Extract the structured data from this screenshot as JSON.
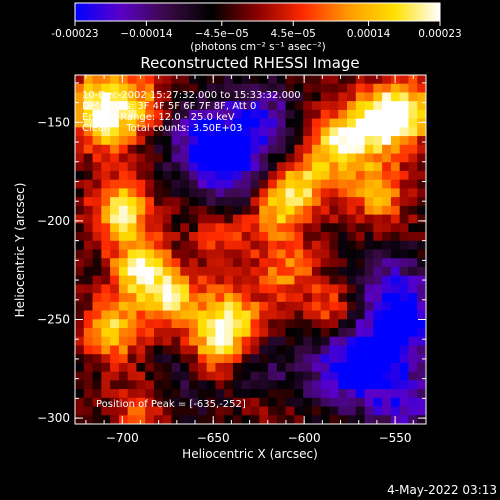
{
  "chart_data": {
    "type": "heatmap",
    "title": "Reconstructed RHESSI Image",
    "xlabel": "Heliocentric X (arcsec)",
    "ylabel": "Heliocentric Y (arcsec)",
    "xlim": [
      -726,
      -533
    ],
    "ylim": [
      -303,
      -126
    ],
    "x_ticks": [
      -700,
      -650,
      -600,
      -550
    ],
    "y_ticks": [
      -150,
      -200,
      -250,
      -300
    ],
    "x_tick_labels": [
      "−700",
      "−650",
      "−600",
      "−550"
    ],
    "y_tick_labels": [
      "−150",
      "−200",
      "−250",
      "−300"
    ],
    "colorbar": {
      "range": [
        -0.00023,
        0.00023
      ],
      "ticks": [
        -0.00023,
        -0.00014,
        -4.5e-05,
        4.5e-05,
        0.00014,
        0.00023
      ],
      "tick_labels": [
        "-0.00023",
        "−0.00014",
        "−4.5e−05",
        "4.5e−05",
        "0.00014",
        "0.00023"
      ],
      "unit_label": "(photons cm⁻² s⁻¹ asec⁻²)",
      "colors": [
        "#0000ff",
        "#5a00c8",
        "#3a0a46",
        "#000000",
        "#8a0000",
        "#ff2a00",
        "#ff9a00",
        "#ffe000",
        "#ffffff"
      ]
    },
    "annotations": [
      "10-Dec-2002 15:27:32.000 to 15:33:32.000",
      "Detectors: 3F 4F 5F 6F 7F 8F, Att 0",
      "Energy Range: 12.0 - 25.0 keV",
      "Clean     Total counts: 3.50E+03"
    ],
    "peak_label": "Position of Peak = [-635,-252]",
    "peak_position": [
      -635,
      -252
    ],
    "hotspots": [
      {
        "x": -700,
        "y": -195,
        "strength": 1.0
      },
      {
        "x": -690,
        "y": -225,
        "strength": 0.95
      },
      {
        "x": -672,
        "y": -240,
        "strength": 0.85
      },
      {
        "x": -640,
        "y": -250,
        "strength": 0.95
      },
      {
        "x": -650,
        "y": -265,
        "strength": 0.7
      },
      {
        "x": -705,
        "y": -255,
        "strength": 0.8
      },
      {
        "x": -710,
        "y": -150,
        "strength": 0.85
      },
      {
        "x": -712,
        "y": -135,
        "strength": 0.6
      },
      {
        "x": -690,
        "y": -140,
        "strength": 0.55
      },
      {
        "x": -580,
        "y": -160,
        "strength": 0.95
      },
      {
        "x": -560,
        "y": -150,
        "strength": 0.9
      },
      {
        "x": -545,
        "y": -145,
        "strength": 1.0
      },
      {
        "x": -600,
        "y": -180,
        "strength": 0.75
      },
      {
        "x": -615,
        "y": -195,
        "strength": 0.7
      },
      {
        "x": -560,
        "y": -185,
        "strength": 0.75
      },
      {
        "x": -610,
        "y": -225,
        "strength": 0.55
      },
      {
        "x": -585,
        "y": -245,
        "strength": 0.45
      },
      {
        "x": -645,
        "y": -210,
        "strength": 0.4
      },
      {
        "x": -690,
        "y": -295,
        "strength": 0.45
      },
      {
        "x": -620,
        "y": -290,
        "strength": 0.35
      }
    ],
    "coldspots": [
      {
        "x": -655,
        "y": -160,
        "strength": 1.0
      },
      {
        "x": -625,
        "y": -150,
        "strength": 0.9
      },
      {
        "x": -640,
        "y": -175,
        "strength": 0.85
      },
      {
        "x": -560,
        "y": -270,
        "strength": 1.0
      },
      {
        "x": -540,
        "y": -250,
        "strength": 0.9
      },
      {
        "x": -580,
        "y": -275,
        "strength": 0.85
      },
      {
        "x": -555,
        "y": -235,
        "strength": 0.7
      },
      {
        "x": -620,
        "y": -280,
        "strength": 0.6
      },
      {
        "x": -545,
        "y": -295,
        "strength": 0.7
      },
      {
        "x": -665,
        "y": -280,
        "strength": 0.4
      }
    ]
  },
  "footer": {
    "date": "4-May-2022 03:13"
  }
}
